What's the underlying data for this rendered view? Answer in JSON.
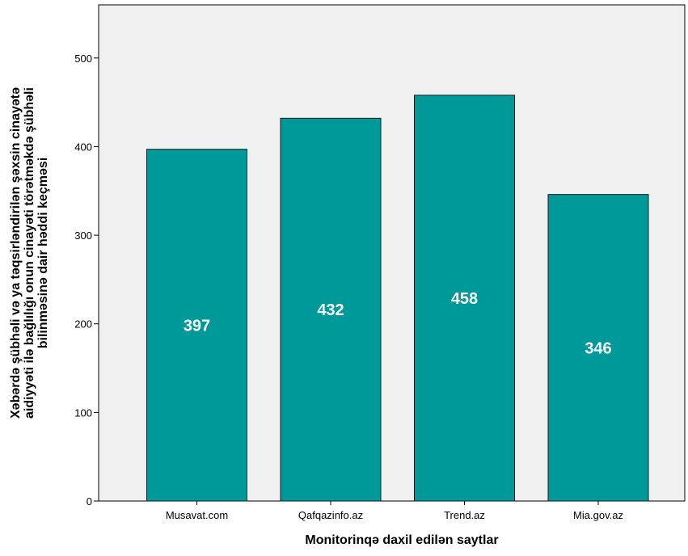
{
  "chart_data": {
    "type": "bar",
    "categories": [
      "Musavat.com",
      "Qafqazinfo.az",
      "Trend.az",
      "Mia.gov.az"
    ],
    "values": [
      397,
      432,
      458,
      346
    ],
    "data_labels": [
      "397",
      "432",
      "458",
      "346"
    ],
    "title": "",
    "xlabel": "Monitorinqə daxil edilən saytlar",
    "ylabel_lines": [
      "Xəbərdə şübhəli və ya təqsirləndirilən şəxsin cinayətə",
      "aidiyyəti ilə bağlılığı onun cinayəti törətməkdə şübhəli",
      "bilinməsinə dair həddi keçməsi"
    ],
    "ylim": [
      0,
      560
    ],
    "yticks": [
      0,
      100,
      200,
      300,
      400,
      500
    ],
    "ytick_labels": [
      "0",
      "100",
      "200",
      "300",
      "400",
      "500"
    ],
    "grid": false,
    "legend": "none",
    "colors": {
      "bar_fill": "#009999",
      "bar_stroke": "#1a1a1a",
      "plot_background": "#f0f0f0",
      "data_label": "#ffffff"
    }
  }
}
